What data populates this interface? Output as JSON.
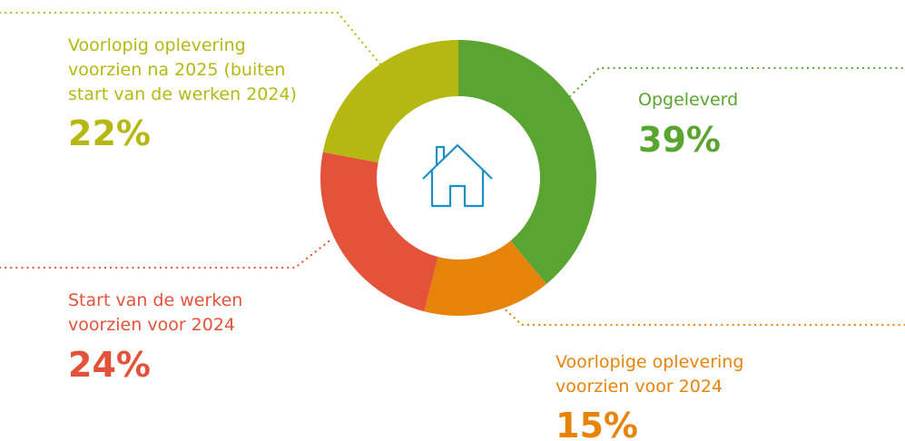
{
  "chart_data": {
    "type": "donut",
    "categories": [
      "Opgeleverd",
      "Voorlopige oplevering voorzien voor 2024",
      "Start van de werken voorzien voor 2024",
      "Voorlopig oplevering voorzien na 2025 (buiten start van de werken 2024)"
    ],
    "values": [
      39,
      15,
      24,
      22
    ],
    "value_labels": [
      "39%",
      "15%",
      "24%",
      "22%"
    ],
    "colors": [
      "#5aa532",
      "#e8830a",
      "#e5523a",
      "#b5b811"
    ]
  }
}
